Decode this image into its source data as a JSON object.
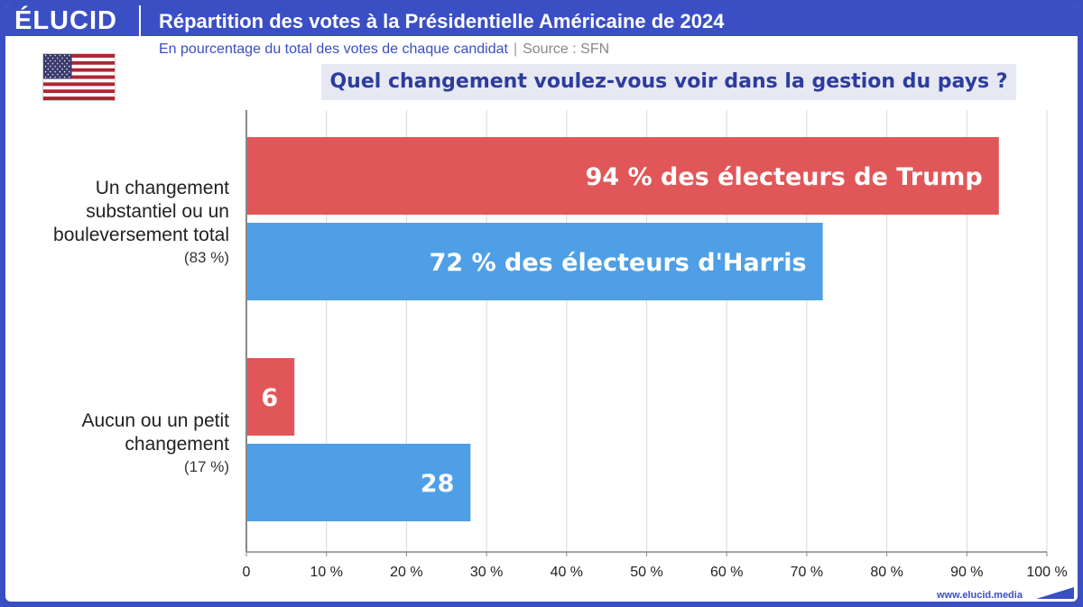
{
  "header": {
    "logo": "ÉLUCID",
    "title": "Répartition des votes à la Présidentielle Américaine de 2024",
    "subtitle": "En pourcentage du total des votes de chaque candidat",
    "separator": "|",
    "source": "Source : SFN"
  },
  "flag": {
    "icon": "us-flag-icon"
  },
  "question": "Quel changement voulez-vous voir dans la gestion du pays ?",
  "footer": {
    "url": "www.elucid.media"
  },
  "colors": {
    "trump": "#e15759",
    "harris": "#4e9fe6",
    "accent": "#3b4fc4"
  },
  "chart_data": {
    "type": "bar",
    "orientation": "horizontal",
    "categories": [
      {
        "label_lines": [
          "Un changement",
          "substantiel ou un",
          "bouleversement total"
        ],
        "share": "(83 %)"
      },
      {
        "label_lines": [
          "Aucun ou un petit",
          "changement"
        ],
        "share": "(17 %)"
      }
    ],
    "series": [
      {
        "values": [
          94,
          6
        ],
        "labels": [
          "94 % des électeurs de Trump",
          "6"
        ]
      },
      {
        "values": [
          72,
          28
        ],
        "labels": [
          "72 % des électeurs d'Harris",
          "28"
        ]
      }
    ],
    "xlim": [
      0,
      100
    ],
    "x_ticks": [
      "0",
      "10 %",
      "20 %",
      "30 %",
      "40 %",
      "50 %",
      "60 %",
      "70 %",
      "80 %",
      "90 %",
      "100 %"
    ],
    "grid": true
  }
}
